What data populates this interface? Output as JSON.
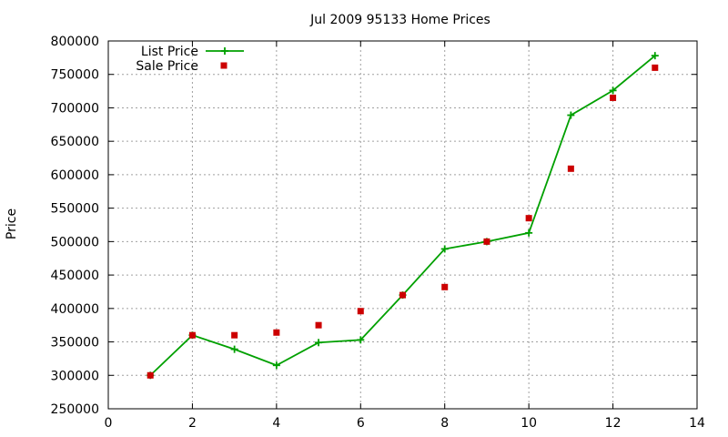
{
  "chart_data": {
    "type": "line",
    "title": "Jul 2009 95133 Home Prices",
    "xlabel": "",
    "ylabel": "Price",
    "xlim": [
      0,
      14
    ],
    "ylim": [
      250000,
      800000
    ],
    "xticks": [
      0,
      2,
      4,
      6,
      8,
      10,
      12,
      14
    ],
    "yticks": [
      250000,
      300000,
      350000,
      400000,
      450000,
      500000,
      550000,
      600000,
      650000,
      700000,
      750000,
      800000
    ],
    "grid": true,
    "legend_position": "top-left",
    "series": [
      {
        "name": "List Price",
        "style": "line-with-plus-markers",
        "color": "#00a000",
        "x": [
          1,
          2,
          3,
          4,
          5,
          6,
          7,
          8,
          9,
          10,
          11,
          12,
          13
        ],
        "y": [
          300000,
          360000,
          339000,
          315000,
          349000,
          353000,
          420000,
          489000,
          500000,
          513000,
          689000,
          726000,
          778000
        ]
      },
      {
        "name": "Sale Price",
        "style": "square-markers",
        "color": "#cc0000",
        "x": [
          1,
          2,
          3,
          4,
          5,
          6,
          7,
          8,
          9,
          10,
          11,
          12,
          13
        ],
        "y": [
          300000,
          360000,
          360000,
          364000,
          375000,
          396000,
          420000,
          432000,
          500000,
          535000,
          609000,
          715000,
          760000
        ]
      }
    ]
  }
}
